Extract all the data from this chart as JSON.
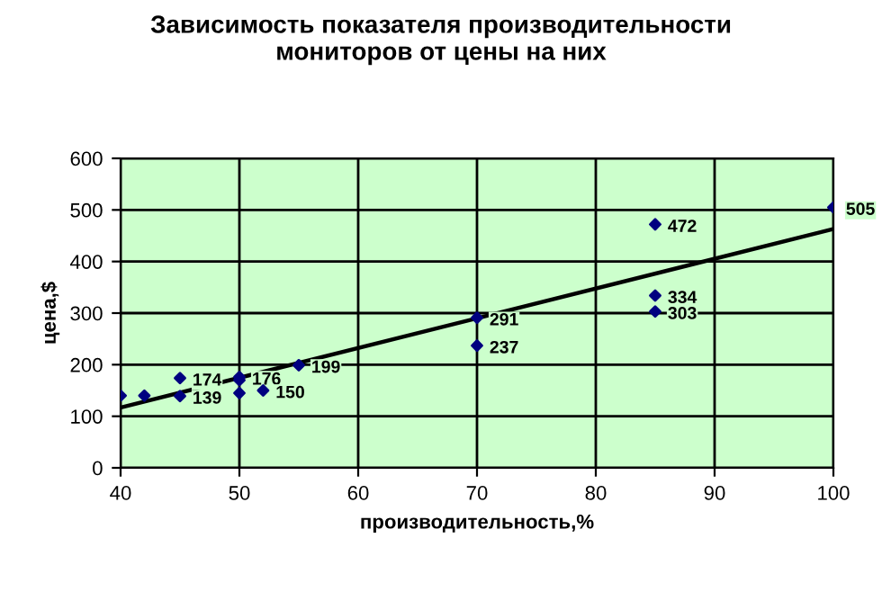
{
  "chart_data": {
    "type": "scatter",
    "title": "Зависимость показателя производительности\nмониторов от цены на них",
    "xlabel": "производительность,%",
    "ylabel": "цена,$",
    "xlim": [
      40,
      100
    ],
    "xticks": [
      40,
      50,
      60,
      70,
      80,
      90,
      100
    ],
    "ylim": [
      0,
      600
    ],
    "yticks": [
      0,
      100,
      200,
      300,
      400,
      500,
      600
    ],
    "grid": true,
    "legend": false,
    "series": [
      {
        "marker": "diamond",
        "color": "#000080",
        "x": [
          40,
          42,
          45,
          45,
          50,
          50,
          50,
          52,
          55,
          70,
          70,
          85,
          85,
          85,
          100
        ],
        "values": [
          140,
          140,
          174,
          139,
          176,
          170,
          145,
          150,
          199,
          291,
          237,
          472,
          334,
          303,
          505
        ],
        "value_labels": [
          null,
          null,
          "174",
          "139",
          "176",
          null,
          null,
          "150",
          "199",
          "291",
          "237",
          "472",
          "334",
          "303",
          "505"
        ]
      },
      {
        "type": "line",
        "color": "#000000",
        "x": [
          40,
          100
        ],
        "values": [
          117,
          463
        ]
      }
    ]
  }
}
